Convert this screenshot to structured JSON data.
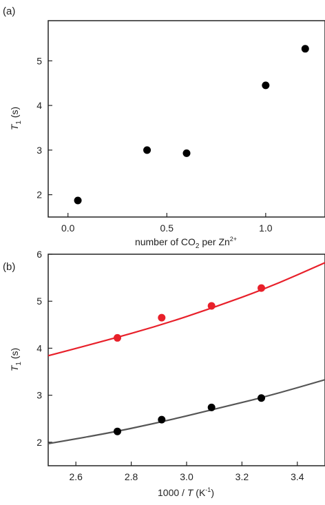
{
  "chart_data": [
    {
      "type": "scatter",
      "panel_label": "(a)",
      "xlabel_parts": [
        "number of CO",
        "2",
        " per Zn",
        "2+"
      ],
      "ylabel_parts": [
        "T",
        "1",
        " (s)"
      ],
      "xlim": [
        -0.1,
        1.3
      ],
      "ylim": [
        1.5,
        5.9
      ],
      "xticks": [
        0.0,
        0.5,
        1.0
      ],
      "xtick_labels": [
        "0.0",
        "0.5",
        "1.0"
      ],
      "yticks": [
        2,
        3,
        4,
        5
      ],
      "ytick_labels": [
        "2",
        "3",
        "4",
        "5"
      ],
      "grid": false,
      "series": [
        {
          "color": "#000000",
          "x": [
            0.05,
            0.4,
            0.6,
            1.0,
            1.2
          ],
          "y": [
            1.87,
            3.0,
            2.93,
            4.45,
            5.27
          ]
        }
      ]
    },
    {
      "type": "scatter",
      "panel_label": "(b)",
      "xlabel_parts": [
        "1000 / ",
        "T",
        " (K",
        "-1",
        ")"
      ],
      "ylabel_parts": [
        "T",
        "1",
        " (s)"
      ],
      "xlim": [
        2.5,
        3.5
      ],
      "ylim": [
        1.5,
        6.0
      ],
      "xticks": [
        2.6,
        2.8,
        3.0,
        3.2,
        3.4
      ],
      "xtick_labels": [
        "2.6",
        "2.8",
        "3.0",
        "3.2",
        "3.4"
      ],
      "yticks": [
        2,
        3,
        4,
        5,
        6
      ],
      "ytick_labels": [
        "2",
        "3",
        "4",
        "5",
        "6"
      ],
      "grid": false,
      "series": [
        {
          "color": "#e8202a",
          "x": [
            2.75,
            2.91,
            3.09,
            3.27
          ],
          "y": [
            4.22,
            4.65,
            4.9,
            5.28
          ],
          "fit": [
            [
              2.5,
              3.84
            ],
            [
              2.7,
              4.15
            ],
            [
              2.9,
              4.48
            ],
            [
              3.1,
              4.87
            ],
            [
              3.3,
              5.3
            ],
            [
              3.5,
              5.82
            ]
          ]
        },
        {
          "color": "#000000",
          "line_color": "#555555",
          "x": [
            2.75,
            2.91,
            3.09,
            3.27
          ],
          "y": [
            2.23,
            2.48,
            2.74,
            2.94
          ],
          "fit": [
            [
              2.5,
              1.97
            ],
            [
              2.7,
              2.17
            ],
            [
              2.9,
              2.42
            ],
            [
              3.1,
              2.7
            ],
            [
              3.3,
              2.99
            ],
            [
              3.5,
              3.33
            ]
          ]
        }
      ]
    }
  ]
}
